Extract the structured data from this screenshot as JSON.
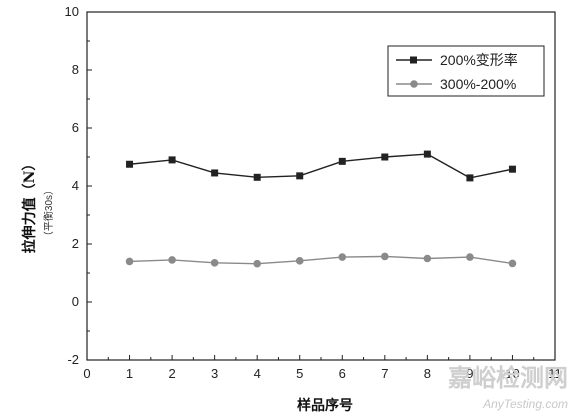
{
  "chart_data": {
    "type": "line",
    "xlabel": "样品序号",
    "ylabel": "拉伸力值（N）",
    "ylabel_sub": "（平衡30s）",
    "xlim": [
      0,
      11
    ],
    "ylim": [
      -2,
      10
    ],
    "x_ticks": [
      "0",
      "1",
      "2",
      "3",
      "4",
      "5",
      "6",
      "7",
      "8",
      "9",
      "10",
      "11"
    ],
    "y_ticks": [
      "-2",
      "0",
      "2",
      "4",
      "6",
      "8",
      "10"
    ],
    "x": [
      1,
      2,
      3,
      4,
      5,
      6,
      7,
      8,
      9,
      10
    ],
    "series": [
      {
        "name": "200%变形率",
        "values": [
          4.75,
          4.9,
          4.45,
          4.3,
          4.35,
          4.85,
          5.0,
          5.1,
          4.28,
          4.58
        ],
        "color": "#222222",
        "marker": "square"
      },
      {
        "name": "300%-200%",
        "values": [
          1.4,
          1.45,
          1.35,
          1.32,
          1.42,
          1.55,
          1.57,
          1.5,
          1.55,
          1.33
        ],
        "color": "#8a8a8a",
        "marker": "circle"
      }
    ],
    "legend_position": "top-right",
    "grid": false
  },
  "watermark": {
    "text_cn": "嘉峪检测网",
    "text_en": "AnyTesting.com"
  }
}
